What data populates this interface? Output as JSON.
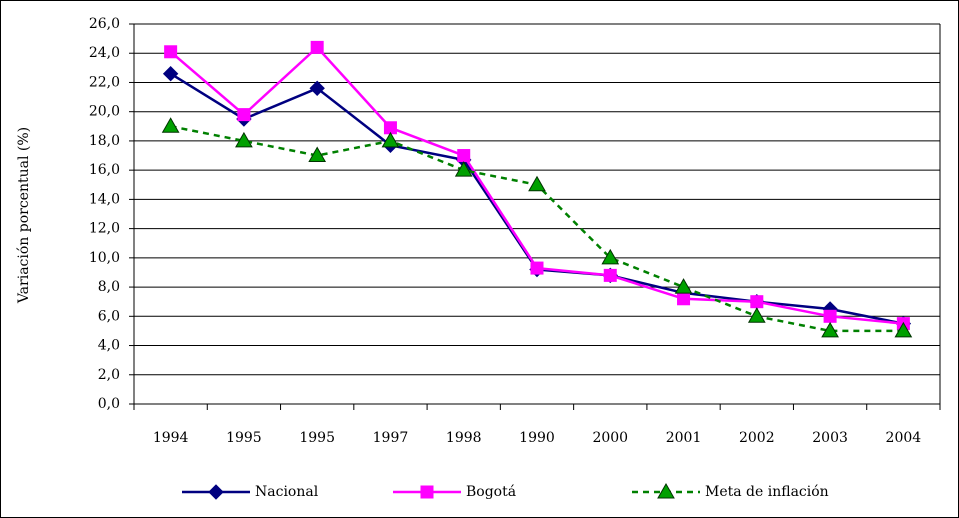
{
  "chart_data": {
    "type": "line",
    "y_label": "Variación porcentual (%)",
    "categories": [
      "1994",
      "1995",
      "1995",
      "1997",
      "1998",
      "1990",
      "2000",
      "2001",
      "2002",
      "2003",
      "2004"
    ],
    "series": [
      {
        "name": "Nacional",
        "color": "#000080",
        "marker": "diamond",
        "dash": false,
        "values": [
          22.6,
          19.5,
          21.6,
          17.7,
          16.7,
          9.2,
          8.8,
          7.6,
          7.0,
          6.5,
          5.5
        ]
      },
      {
        "name": "Bogotá",
        "color": "#ff00ff",
        "marker": "square",
        "dash": false,
        "values": [
          24.1,
          19.8,
          24.4,
          18.9,
          17.0,
          9.3,
          8.8,
          7.2,
          7.0,
          6.0,
          5.5
        ]
      },
      {
        "name": "Meta de inflación",
        "color": "#008000",
        "marker": "triangle",
        "dash": true,
        "values": [
          19.0,
          18.0,
          17.0,
          18.0,
          16.0,
          15.0,
          10.0,
          8.0,
          6.0,
          5.0,
          5.0
        ]
      }
    ],
    "ylim": [
      0,
      26
    ],
    "yticks": [
      {
        "value": 0,
        "label": "0,0"
      },
      {
        "value": 2,
        "label": "2,0"
      },
      {
        "value": 4,
        "label": "4,0"
      },
      {
        "value": 6,
        "label": "6,0"
      },
      {
        "value": 8,
        "label": "8,0"
      },
      {
        "value": 10,
        "label": "10,0"
      },
      {
        "value": 12,
        "label": "12,0"
      },
      {
        "value": 14,
        "label": "14,0"
      },
      {
        "value": 16,
        "label": "16,0"
      },
      {
        "value": 18,
        "label": "18,0"
      },
      {
        "value": 20,
        "label": "20,0"
      },
      {
        "value": 22,
        "label": "22,0"
      },
      {
        "value": 24,
        "label": "24,0"
      },
      {
        "value": 26,
        "label": "26,0"
      }
    ],
    "grid": true,
    "legend": "bottom"
  }
}
